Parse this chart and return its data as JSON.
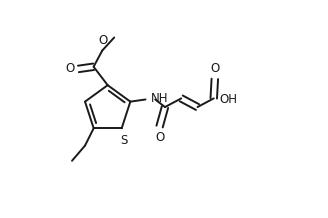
{
  "background_color": "#ffffff",
  "line_color": "#1a1a1a",
  "line_width": 1.4,
  "font_size": 8.5,
  "fig_width": 3.28,
  "fig_height": 2.18,
  "dpi": 100,
  "xlim": [
    0.0,
    1.0
  ],
  "ylim": [
    0.0,
    1.0
  ]
}
